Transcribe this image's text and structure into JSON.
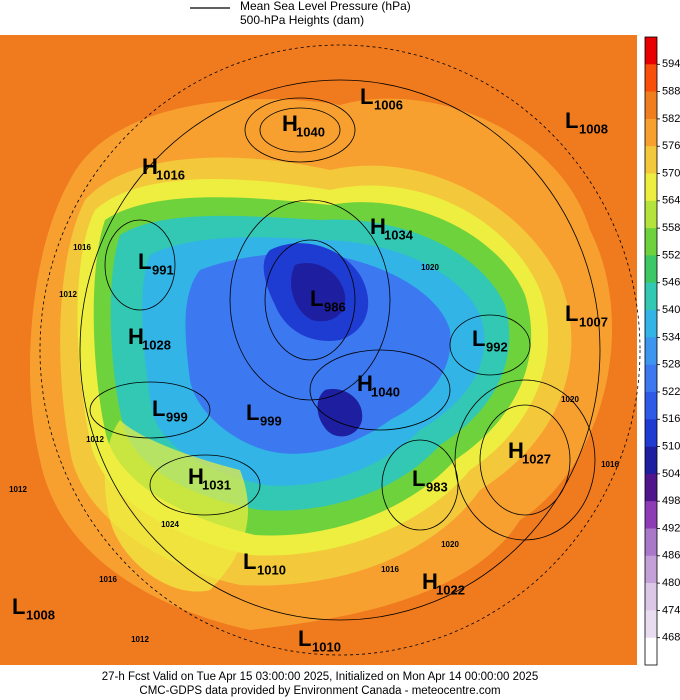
{
  "header": {
    "line_1": "Mean Sea Level Pressure (hPa)",
    "line_2": "500-hPa Heights (dam)"
  },
  "colorbar": {
    "ticks": [
      594,
      588,
      582,
      576,
      570,
      564,
      558,
      552,
      546,
      540,
      534,
      528,
      522,
      516,
      510,
      504,
      498,
      492,
      486,
      480,
      474,
      468
    ],
    "colors": [
      "#e60000",
      "#f8500a",
      "#f07d1e",
      "#f7a030",
      "#f3c83a",
      "#eeee40",
      "#b4e43c",
      "#6ed23c",
      "#3cc864",
      "#32c8b4",
      "#32b4e6",
      "#3c96f0",
      "#3c78f0",
      "#2d5ae6",
      "#1e3cd2",
      "#1e1ea0",
      "#50148c",
      "#8c3cb4",
      "#aa78c8",
      "#c3a0d7",
      "#dcc8e6",
      "#e8dcf0",
      "#ffffff"
    ]
  },
  "centers": [
    {
      "kind": "L",
      "value": 1006
    },
    {
      "kind": "H",
      "value": 1040
    },
    {
      "kind": "L",
      "value": 1008
    },
    {
      "kind": "H",
      "value": 1016
    },
    {
      "kind": "H",
      "value": 1034
    },
    {
      "kind": "L",
      "value": 991
    },
    {
      "kind": "L",
      "value": 986
    },
    {
      "kind": "L",
      "value": 1007
    },
    {
      "kind": "H",
      "value": 1028
    },
    {
      "kind": "L",
      "value": 992
    },
    {
      "kind": "H",
      "value": 1040
    },
    {
      "kind": "L",
      "value": 999
    },
    {
      "kind": "L",
      "value": 999
    },
    {
      "kind": "H",
      "value": 1027
    },
    {
      "kind": "H",
      "value": 1031
    },
    {
      "kind": "L",
      "value": 983
    },
    {
      "kind": "L",
      "value": 1010
    },
    {
      "kind": "H",
      "value": 1022
    },
    {
      "kind": "L",
      "value": 1008
    },
    {
      "kind": "L",
      "value": 1010
    }
  ],
  "isobar_labels": [
    1016,
    1012,
    1012,
    1020,
    1024,
    1016,
    1012,
    1016,
    1020,
    1016,
    1020,
    1012
  ],
  "footer": {
    "line_1": "27-h Fcst Valid on Tue Apr 15 03:00:00 2025, Initialized on Mon Apr 14 00:00:00 2025",
    "line_2": "CMC-GDPS data provided by Environment Canada - meteocentre.com"
  }
}
